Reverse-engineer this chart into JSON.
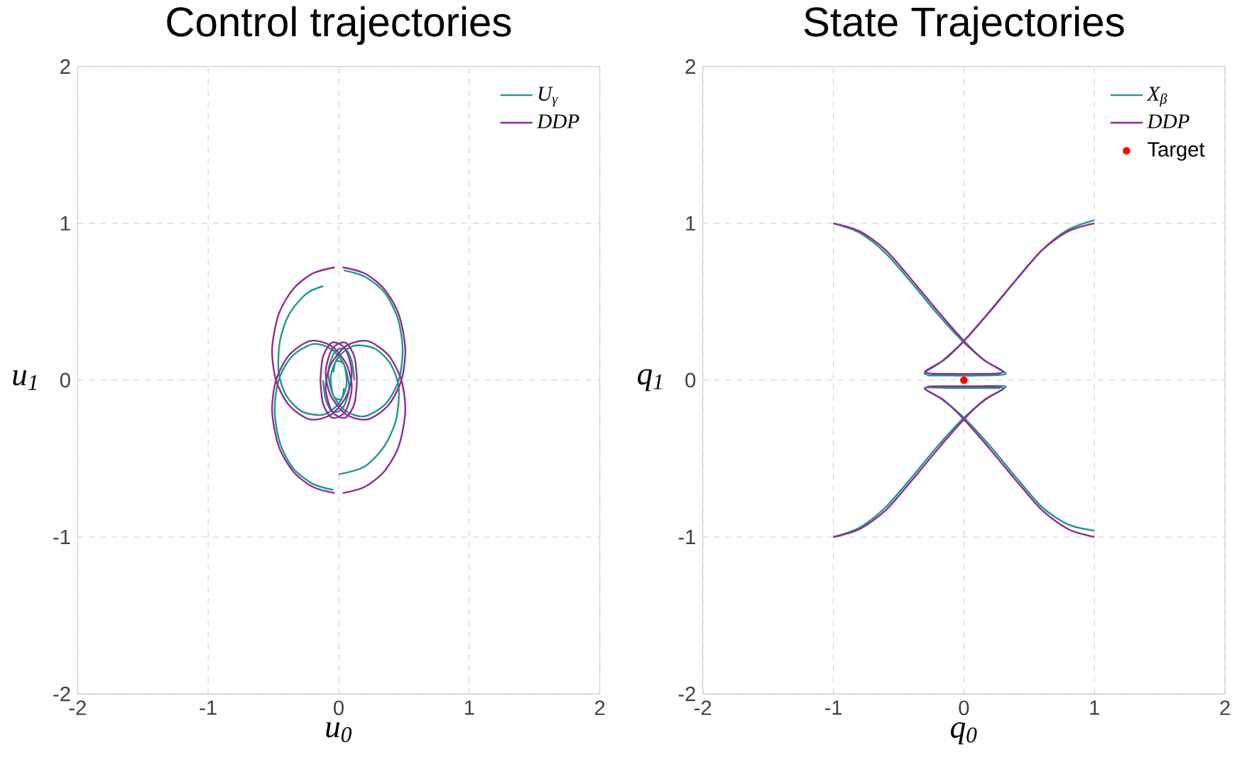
{
  "chart_data": [
    {
      "type": "line",
      "title": "Control trajectories",
      "xlabel": "u$_{0}$",
      "ylabel": "u$_{1}$",
      "xlim": [
        -2,
        2
      ],
      "ylim": [
        -2,
        2
      ],
      "xticks": [
        -2,
        -1,
        0,
        1,
        2
      ],
      "yticks": [
        -2,
        -1,
        0,
        1,
        2
      ],
      "grid": true,
      "legend": "top right",
      "series": [
        {
          "name": "U$_{γ}$",
          "color": "#1f968b",
          "x": [
            0.04,
            0.2,
            0.35,
            0.45,
            0.49,
            0.46,
            0.36,
            0.2,
            0.06,
            -0.04,
            -0.08,
            -0.03,
            0.05,
            0.1,
            0.12,
            null,
            -0.12,
            -0.25,
            -0.38,
            -0.45,
            -0.46,
            -0.4,
            -0.28,
            -0.12,
            0.0,
            0.06,
            0.04,
            -0.02,
            -0.04,
            null,
            0.0,
            0.2,
            0.35,
            0.44,
            0.46,
            0.4,
            0.28,
            0.12,
            0.0,
            -0.06,
            -0.04,
            0.02,
            0.04,
            null,
            -0.04,
            -0.2,
            -0.35,
            -0.45,
            -0.49,
            -0.46,
            -0.36,
            -0.2,
            -0.06,
            0.04,
            0.08,
            0.03,
            -0.05,
            -0.1,
            -0.12
          ],
          "values": [
            0.7,
            0.66,
            0.56,
            0.4,
            0.2,
            0.0,
            -0.15,
            -0.23,
            -0.2,
            -0.1,
            0.05,
            0.18,
            0.2,
            0.12,
            0.0,
            null,
            0.6,
            0.55,
            0.42,
            0.25,
            0.05,
            -0.1,
            -0.2,
            -0.22,
            -0.15,
            -0.03,
            0.1,
            0.12,
            0.05,
            null,
            -0.6,
            -0.55,
            -0.42,
            -0.25,
            -0.05,
            0.1,
            0.2,
            0.22,
            0.15,
            0.03,
            -0.1,
            -0.12,
            -0.05,
            null,
            -0.7,
            -0.66,
            -0.56,
            -0.4,
            -0.2,
            0.0,
            0.15,
            0.23,
            0.2,
            0.1,
            -0.05,
            -0.18,
            -0.2,
            -0.12,
            0.0
          ]
        },
        {
          "name": "DDP",
          "color": "#8e2c96",
          "x": [
            0.03,
            0.2,
            0.35,
            0.46,
            0.51,
            0.48,
            0.38,
            0.22,
            0.06,
            -0.06,
            -0.1,
            -0.05,
            0.05,
            0.12,
            0.14,
            null,
            -0.03,
            -0.2,
            -0.35,
            -0.46,
            -0.51,
            -0.48,
            -0.38,
            -0.22,
            -0.06,
            0.06,
            0.1,
            0.05,
            -0.05,
            -0.12,
            -0.14,
            null,
            0.03,
            0.2,
            0.35,
            0.46,
            0.51,
            0.48,
            0.38,
            0.22,
            0.06,
            -0.06,
            -0.1,
            -0.05,
            0.05,
            0.12,
            0.14,
            null,
            -0.03,
            -0.2,
            -0.35,
            -0.46,
            -0.51,
            -0.48,
            -0.38,
            -0.22,
            -0.06,
            0.06,
            0.1,
            0.05,
            -0.05,
            -0.12,
            -0.14
          ],
          "values": [
            0.72,
            0.68,
            0.58,
            0.42,
            0.2,
            0.0,
            -0.16,
            -0.25,
            -0.22,
            -0.1,
            0.05,
            0.2,
            0.24,
            0.15,
            0.0,
            null,
            0.72,
            0.68,
            0.58,
            0.42,
            0.2,
            0.0,
            -0.16,
            -0.25,
            -0.22,
            -0.1,
            0.05,
            0.2,
            0.24,
            0.15,
            0.0,
            null,
            -0.72,
            -0.68,
            -0.58,
            -0.42,
            -0.2,
            0.0,
            0.16,
            0.25,
            0.22,
            0.1,
            -0.05,
            -0.2,
            -0.24,
            -0.15,
            0.0,
            null,
            -0.72,
            -0.68,
            -0.58,
            -0.42,
            -0.2,
            0.0,
            0.16,
            0.25,
            0.22,
            0.1,
            -0.05,
            -0.2,
            -0.24,
            -0.15,
            0.0
          ]
        }
      ]
    },
    {
      "type": "line",
      "title": "State Trajectories",
      "xlabel": "q$_{0}$",
      "ylabel": "q$_{1}$",
      "xlim": [
        -2,
        2
      ],
      "ylim": [
        -2,
        2
      ],
      "xticks": [
        -2,
        -1,
        0,
        1,
        2
      ],
      "yticks": [
        -2,
        -1,
        0,
        1,
        2
      ],
      "grid": true,
      "legend": "top right",
      "series": [
        {
          "name": "X$_{β}$",
          "color": "#1f968b",
          "x": [
            -1,
            -0.8,
            -0.6,
            -0.4,
            -0.2,
            0,
            0.17,
            0.32,
            0.1,
            -0.1,
            -0.28,
            null,
            1,
            0.8,
            0.6,
            0.4,
            0.2,
            0,
            -0.17,
            -0.3,
            -0.1,
            0.1,
            0.28,
            null,
            -1,
            -0.8,
            -0.6,
            -0.4,
            -0.2,
            0,
            0.17,
            0.32,
            0.1,
            -0.1,
            -0.28,
            null,
            1,
            0.8,
            0.6,
            0.4,
            0.2,
            0,
            -0.17,
            -0.3,
            -0.1,
            0.1,
            0.28
          ],
          "values": [
            1,
            0.94,
            0.81,
            0.62,
            0.42,
            0.24,
            0.12,
            0.04,
            0.03,
            0.03,
            0.03,
            null,
            1.02,
            0.96,
            0.83,
            0.64,
            0.44,
            0.25,
            0.12,
            0.04,
            0.03,
            0.03,
            0.04,
            null,
            -1,
            -0.94,
            -0.81,
            -0.62,
            -0.42,
            -0.24,
            -0.12,
            -0.04,
            -0.04,
            -0.04,
            -0.04,
            null,
            -0.96,
            -0.92,
            -0.81,
            -0.62,
            -0.42,
            -0.24,
            -0.12,
            -0.05,
            -0.05,
            -0.05,
            -0.05
          ]
        },
        {
          "name": "DDP",
          "color": "#8e2c96",
          "x": [
            -1,
            -0.8,
            -0.6,
            -0.4,
            -0.2,
            0,
            0.15,
            0.3,
            0.1,
            -0.1,
            -0.25,
            null,
            1,
            0.8,
            0.6,
            0.4,
            0.2,
            0,
            -0.15,
            -0.3,
            -0.1,
            0.1,
            0.25,
            null,
            -1,
            -0.8,
            -0.6,
            -0.4,
            -0.2,
            0,
            0.15,
            0.3,
            0.1,
            -0.1,
            -0.25,
            null,
            1,
            0.8,
            0.6,
            0.4,
            0.2,
            0,
            -0.15,
            -0.3,
            -0.1,
            0.1,
            0.25
          ],
          "values": [
            1,
            0.95,
            0.83,
            0.64,
            0.44,
            0.25,
            0.13,
            0.05,
            0.04,
            0.04,
            0.04,
            null,
            1,
            0.95,
            0.83,
            0.64,
            0.44,
            0.25,
            0.13,
            0.05,
            0.04,
            0.04,
            0.04,
            null,
            -1,
            -0.95,
            -0.83,
            -0.64,
            -0.44,
            -0.25,
            -0.13,
            -0.05,
            -0.04,
            -0.04,
            -0.04,
            null,
            -1,
            -0.95,
            -0.83,
            -0.64,
            -0.44,
            -0.25,
            -0.13,
            -0.05,
            -0.04,
            -0.04,
            -0.04
          ]
        },
        {
          "name": "Target",
          "type": "scatter",
          "color": "#ff0000",
          "x": [
            0
          ],
          "values": [
            0
          ]
        }
      ]
    }
  ]
}
